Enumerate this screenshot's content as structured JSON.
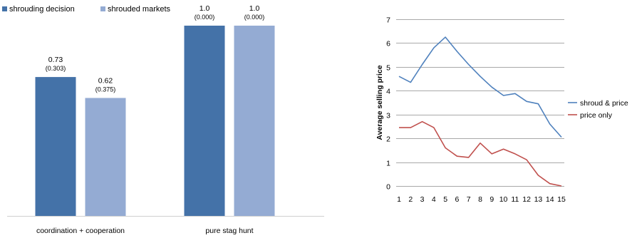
{
  "chart_data": [
    {
      "type": "bar",
      "categories": [
        "coordination + cooperation",
        "pure stag hunt"
      ],
      "series": [
        {
          "name": "shrouding decision",
          "values": [
            0.73,
            1.0
          ],
          "value_labels": [
            "0.73",
            "1.0"
          ],
          "se_labels": [
            "(0.303)",
            "(0.000)"
          ]
        },
        {
          "name": "shrouded markets",
          "values": [
            0.62,
            1.0
          ],
          "value_labels": [
            "0.62",
            "1.0"
          ],
          "se_labels": [
            "(0.375)",
            "(0.000)"
          ]
        }
      ],
      "ylim": [
        0,
        1
      ],
      "grid": false,
      "legend_position": "top-left",
      "colors": [
        "#4472A8",
        "#94ABD3"
      ]
    },
    {
      "type": "line",
      "x": [
        1,
        2,
        3,
        4,
        5,
        6,
        7,
        8,
        9,
        10,
        11,
        12,
        13,
        14,
        15
      ],
      "series": [
        {
          "name": "shroud & price",
          "values": [
            4.6,
            4.35,
            5.1,
            5.8,
            6.25,
            5.65,
            5.1,
            4.6,
            4.15,
            3.8,
            3.88,
            3.55,
            3.45,
            2.6,
            2.05
          ]
        },
        {
          "name": "price only",
          "values": [
            2.45,
            2.45,
            2.7,
            2.45,
            1.6,
            1.25,
            1.2,
            1.8,
            1.35,
            1.55,
            1.35,
            1.1,
            0.45,
            0.1,
            0.0
          ]
        }
      ],
      "ylabel": "Average selling price",
      "y_ticks": [
        "0",
        "1",
        "2",
        "3",
        "4",
        "5",
        "6",
        "7"
      ],
      "x_ticks": [
        "1",
        "2",
        "3",
        "4",
        "5",
        "6",
        "7",
        "8",
        "9",
        "10",
        "11",
        "12",
        "13",
        "14",
        "15"
      ],
      "ylim": [
        0,
        7
      ],
      "grid": true,
      "legend_position": "right",
      "colors": [
        "#4F81BD",
        "#C0504D"
      ]
    }
  ]
}
